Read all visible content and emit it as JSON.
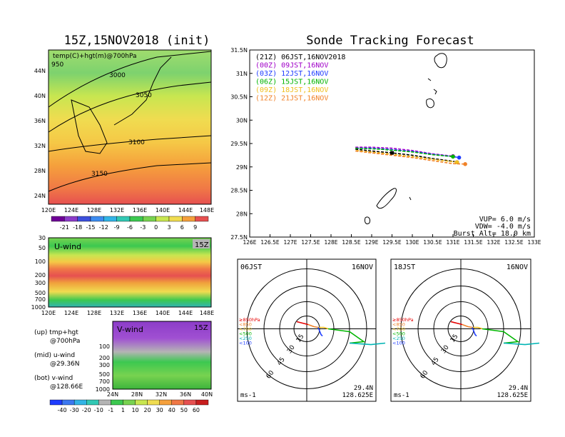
{
  "left_title": "15Z,15NOV2018 (init)",
  "right_title": "Sonde Tracking Forecast",
  "map_panel": {
    "label": "temp(C)+hgt(m)@700hPa",
    "contour_labels": [
      "950",
      "3000",
      "3050",
      "3100",
      "3150"
    ],
    "yticks": [
      "44N",
      "40N",
      "36N",
      "32N",
      "28N",
      "24N"
    ],
    "xticks": [
      "120E",
      "124E",
      "128E",
      "132E",
      "136E",
      "140E",
      "144E",
      "148E"
    ]
  },
  "temp_colorbar": [
    "-21",
    "-18",
    "-15",
    "-12",
    "-9",
    "-6",
    "-3",
    "0",
    "3",
    "6",
    "9"
  ],
  "uwind_panel": {
    "label": "U-wind",
    "time": "15Z",
    "yticks": [
      "30",
      "50",
      "100",
      "200",
      "300",
      "500",
      "700",
      "1000"
    ],
    "xticks": [
      "120E",
      "124E",
      "128E",
      "132E",
      "136E",
      "140E",
      "144E",
      "148E"
    ]
  },
  "vwind_panel": {
    "label": "V-wind",
    "time": "15Z",
    "yticks": [
      "100",
      "200",
      "300",
      "500",
      "700",
      "1000"
    ],
    "xticks": [
      "24N",
      "28N",
      "32N",
      "36N",
      "40N"
    ]
  },
  "wind_colorbar": [
    "-40",
    "-30",
    "-20",
    "-10",
    "-1",
    "1",
    "10",
    "20",
    "30",
    "40",
    "50",
    "60"
  ],
  "notes": [
    {
      "text": "(up) tmp+hgt",
      "sub": "@700hPa"
    },
    {
      "text": "(mid) u-wind",
      "sub": "@29.36N"
    },
    {
      "text": "(bot) v-wind",
      "sub": "@128.66E"
    }
  ],
  "track_legend": [
    {
      "code": "(21Z)",
      "time": "06JST,16NOV2018",
      "color": "#000000"
    },
    {
      "code": "(00Z)",
      "time": "09JST,16NOV",
      "color": "#a000c8"
    },
    {
      "code": "(03Z)",
      "time": "12JST,16NOV",
      "color": "#1e3cff"
    },
    {
      "code": "(06Z)",
      "time": "15JST,16NOV",
      "color": "#00b400"
    },
    {
      "code": "(09Z)",
      "time": "18JST,16NOV",
      "color": "#f0be1e"
    },
    {
      "code": "(12Z)",
      "time": "21JST,16NOV",
      "color": "#f08228"
    }
  ],
  "track_info": [
    "VUP= 6.0 m/s",
    "VDW= -4.0 m/s",
    "Burst Alt= 18.0 km"
  ],
  "chart_data": {
    "type": "line",
    "title": "Sonde Tracking Forecast",
    "xlim": [
      126,
      133
    ],
    "ylim": [
      27.5,
      31.5
    ],
    "xticks": [
      "126E",
      "126.5E",
      "127E",
      "127.5E",
      "128E",
      "128.5E",
      "129E",
      "129.5E",
      "130E",
      "130.5E",
      "131E",
      "131.5E",
      "132E",
      "132.5E",
      "133E"
    ],
    "yticks": [
      "27.5N",
      "28N",
      "28.5N",
      "29N",
      "29.5N",
      "30N",
      "30.5N",
      "31N",
      "31.5N"
    ],
    "series": [
      {
        "name": "(21Z) 06JST,16NOV2018",
        "color": "#000000",
        "x": [
          128.6,
          129.0,
          129.5,
          130.0,
          130.5,
          131.0,
          131.1
        ],
        "y": [
          29.38,
          29.34,
          29.3,
          29.25,
          29.18,
          29.12,
          29.1
        ]
      },
      {
        "name": "(00Z) 09JST,16NOV",
        "color": "#a000c8",
        "x": [
          128.6,
          129.0,
          129.5,
          130.0,
          130.5,
          131.0
        ],
        "y": [
          29.42,
          29.42,
          29.4,
          29.35,
          29.28,
          29.23
        ]
      },
      {
        "name": "(03Z) 12JST,16NOV",
        "color": "#1e3cff",
        "x": [
          128.62,
          129.0,
          129.5,
          130.0,
          130.5,
          131.0,
          131.15
        ],
        "y": [
          29.4,
          29.4,
          29.37,
          29.33,
          29.27,
          29.22,
          29.2
        ]
      },
      {
        "name": "(06Z) 15JST,16NOV",
        "color": "#00b400",
        "x": [
          128.6,
          129.2,
          130.0,
          130.5,
          131.0
        ],
        "y": [
          29.4,
          29.38,
          29.32,
          29.26,
          29.22
        ]
      },
      {
        "name": "(09Z) 18JST,16NOV",
        "color": "#f0be1e",
        "x": [
          128.62,
          129.2,
          130.0,
          130.6,
          131.1
        ],
        "y": [
          29.35,
          29.3,
          29.22,
          29.15,
          29.1
        ]
      },
      {
        "name": "(12Z) 21JST,16NOV",
        "color": "#f08228",
        "x": [
          128.6,
          129.2,
          130.0,
          130.6,
          131.0,
          131.3
        ],
        "y": [
          29.34,
          29.28,
          29.2,
          29.12,
          29.07,
          29.06
        ]
      }
    ]
  },
  "hodo_left": {
    "time": "06JST",
    "date": "16NOV",
    "rings": [
      "15",
      "30",
      "45",
      "60"
    ],
    "levels": [
      {
        "label": "≥850hPa",
        "color": "#e60000"
      },
      {
        "label": "<850",
        "color": "#f08228"
      },
      {
        "label": "<700",
        "color": "#f0be1e"
      },
      {
        "label": "<500",
        "color": "#00b400"
      },
      {
        "label": "<250",
        "color": "#00b4b4"
      },
      {
        "label": "<100",
        "color": "#1e3cff"
      }
    ],
    "unit": "ms-1",
    "lat": "29.4N",
    "lon": "128.625E"
  },
  "hodo_right": {
    "time": "18JST",
    "date": "16NOV",
    "rings": [
      "15",
      "30",
      "45",
      "60"
    ],
    "levels": [
      {
        "label": "≥850hPa",
        "color": "#e60000"
      },
      {
        "label": "<850",
        "color": "#f08228"
      },
      {
        "label": "<700",
        "color": "#f0be1e"
      },
      {
        "label": "<500",
        "color": "#00b400"
      },
      {
        "label": "<250",
        "color": "#00b4b4"
      },
      {
        "label": "<100",
        "color": "#1e3cff"
      }
    ],
    "unit": "ms-1",
    "lat": "29.4N",
    "lon": "128.625E"
  }
}
